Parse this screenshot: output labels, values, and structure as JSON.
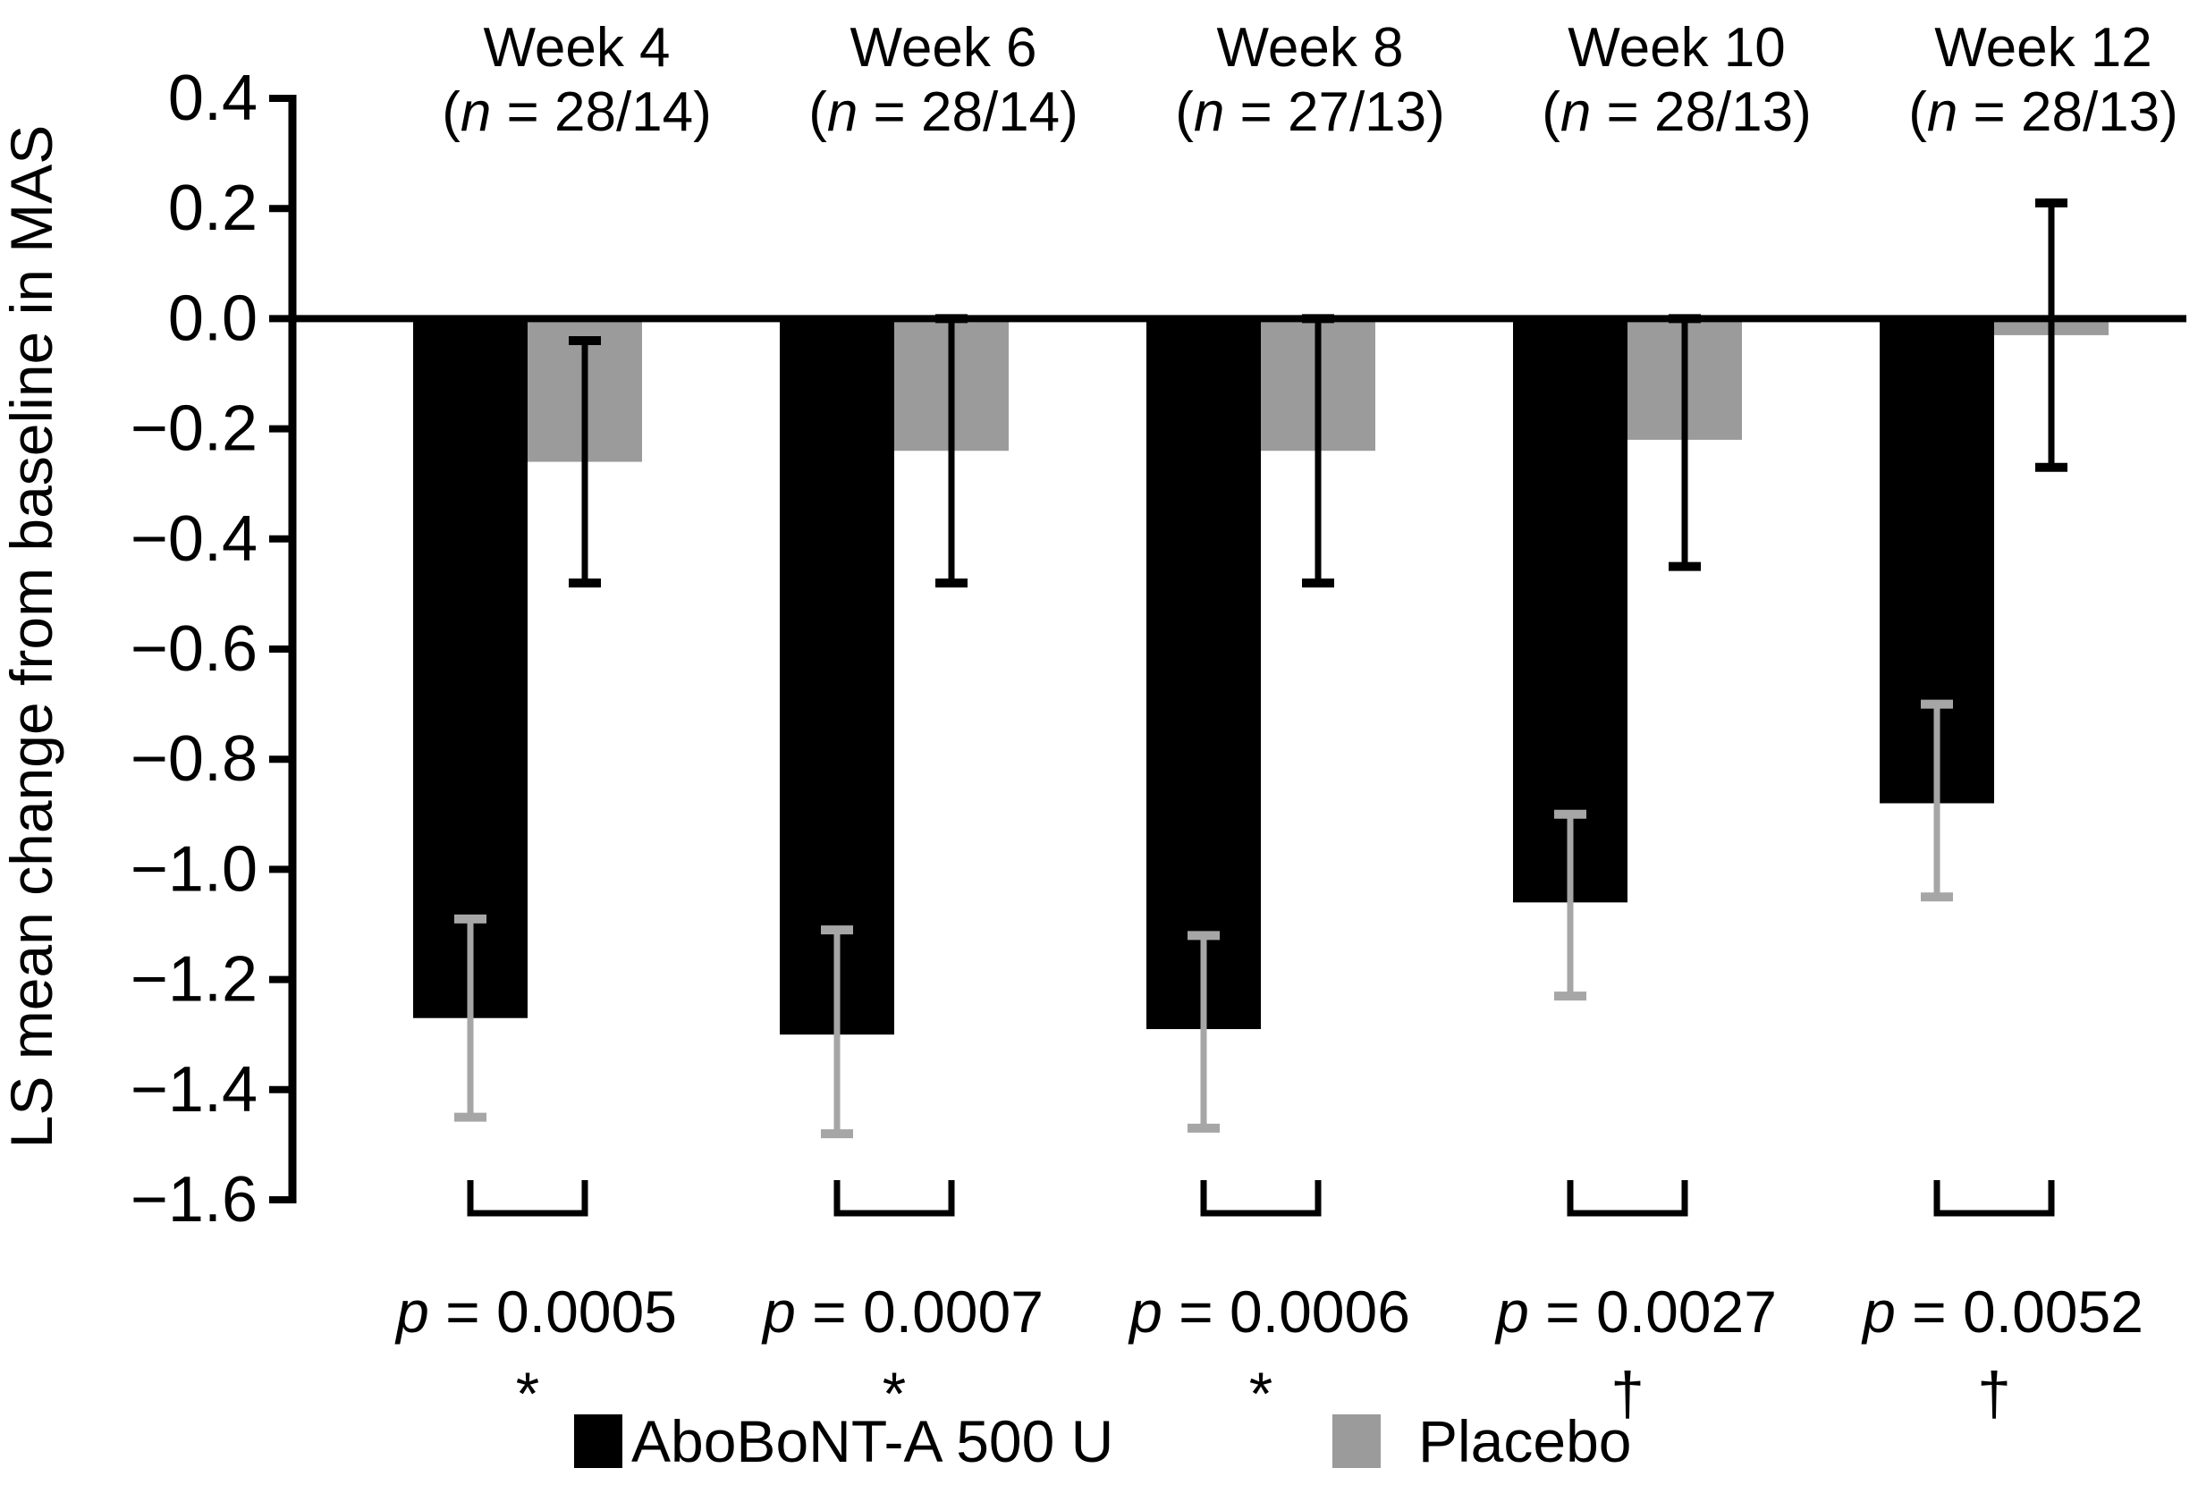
{
  "chart_data": {
    "type": "bar",
    "title": "",
    "ylabel": "LS mean change from baseline in MAS",
    "ylim": [
      -1.6,
      0.4
    ],
    "ytick_labels": [
      "0.4",
      "0.2",
      "0.0",
      "−0.2",
      "−0.4",
      "−0.6",
      "−0.8",
      "−1.0",
      "−1.2",
      "−1.4",
      "−1.6"
    ],
    "grid": false,
    "legend_position": "bottom",
    "categories": [
      "Week 4",
      "Week 6",
      "Week 8",
      "Week 10",
      "Week 12"
    ],
    "n_labels": [
      "(n = 28/14)",
      "(n = 28/14)",
      "(n = 27/13)",
      "(n = 28/13)",
      "(n = 28/13)"
    ],
    "series": [
      {
        "name": "AboBoNT-A 500 U",
        "color": "#000000",
        "error_color": "#a6a6a6",
        "values": [
          -1.27,
          -1.3,
          -1.29,
          -1.06,
          -0.88
        ],
        "error_high": [
          -1.09,
          -1.11,
          -1.12,
          -0.9,
          -0.7
        ],
        "error_low": [
          -1.45,
          -1.48,
          -1.47,
          -1.23,
          -1.05
        ]
      },
      {
        "name": "Placebo",
        "color": "#9b9b9b",
        "error_color": "#000000",
        "values": [
          -0.26,
          -0.24,
          -0.24,
          -0.22,
          -0.03
        ],
        "error_high": [
          -0.04,
          0.0,
          0.0,
          0.0,
          0.21
        ],
        "error_low": [
          -0.48,
          -0.48,
          -0.48,
          -0.45,
          -0.27
        ]
      }
    ],
    "p_values": [
      "p = 0.0005",
      "p = 0.0007",
      "p = 0.0006",
      "p = 0.0027",
      "p = 0.0052"
    ],
    "significance_markers": [
      "*",
      "*",
      "*",
      "†",
      "†"
    ]
  },
  "legend": {
    "items": [
      {
        "label": "AboBoNT-A 500 U",
        "color": "#000000"
      },
      {
        "label": "Placebo",
        "color": "#9b9b9b"
      }
    ]
  }
}
